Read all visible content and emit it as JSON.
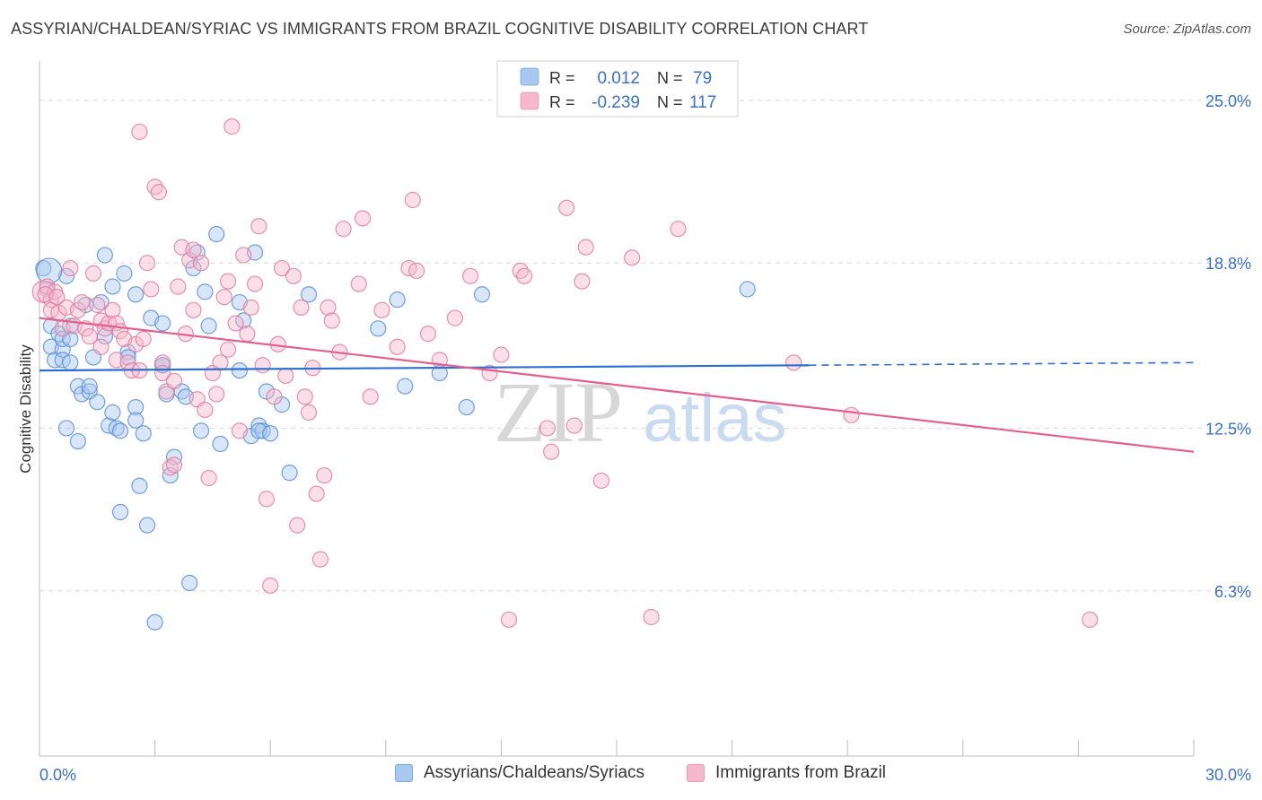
{
  "title": "ASSYRIAN/CHALDEAN/SYRIAC VS IMMIGRANTS FROM BRAZIL COGNITIVE DISABILITY CORRELATION CHART",
  "source": "Source: ZipAtlas.com",
  "watermark": {
    "zip": "ZIP",
    "atlas": "atlas"
  },
  "colors": {
    "blue_fill": "#a9c8f0",
    "blue_stroke": "#5b8fd6",
    "blue_line": "#2d6fd0",
    "pink_fill": "#f5b8cc",
    "pink_stroke": "#e27ea0",
    "pink_line": "#e0608e",
    "axis_label": "#3a6fc4",
    "grid": "#d8d8d8"
  },
  "legend": {
    "rows": [
      {
        "r_label": "R =",
        "r_value": "0.012",
        "n_label": "N =",
        "n_value": "79"
      },
      {
        "r_label": "R =",
        "r_value": "-0.239",
        "n_label": "N =",
        "n_value": "117"
      }
    ]
  },
  "bottom_legend": [
    "Assyrians/Chaldeans/Syriacs",
    "Immigrants from Brazil"
  ],
  "chart_data": {
    "type": "scatter",
    "ylabel": "Cognitive Disability",
    "xlim": [
      0,
      30
    ],
    "ylim": [
      0,
      26.5
    ],
    "x_tick_labels": {
      "left": "0.0%",
      "right": "30.0%"
    },
    "y_ticks": [
      {
        "value": 25.0,
        "label": "25.0%"
      },
      {
        "value": 18.8,
        "label": "18.8%"
      },
      {
        "value": 12.5,
        "label": "12.5%"
      },
      {
        "value": 6.3,
        "label": "6.3%"
      }
    ],
    "series": [
      {
        "name": "Assyrians/Chaldeans/Syriacs",
        "trend": {
          "x0": 0,
          "y0": 14.7,
          "x1": 20,
          "y1": 14.9,
          "dash_x1": 30,
          "dash_y1": 15.0
        },
        "points": [
          [
            0.1,
            18.6
          ],
          [
            0.2,
            17.8
          ],
          [
            0.3,
            16.4
          ],
          [
            0.3,
            15.6
          ],
          [
            0.4,
            15.1
          ],
          [
            0.5,
            16.1
          ],
          [
            0.6,
            15.5
          ],
          [
            0.6,
            15.1
          ],
          [
            0.6,
            15.9
          ],
          [
            0.7,
            18.3
          ],
          [
            0.8,
            16.4
          ],
          [
            0.8,
            15.9
          ],
          [
            0.7,
            12.5
          ],
          [
            0.8,
            15.0
          ],
          [
            1.0,
            14.1
          ],
          [
            1.0,
            12.0
          ],
          [
            1.1,
            13.8
          ],
          [
            1.2,
            17.2
          ],
          [
            1.3,
            13.9
          ],
          [
            1.3,
            14.1
          ],
          [
            1.4,
            15.2
          ],
          [
            1.5,
            13.5
          ],
          [
            1.6,
            17.3
          ],
          [
            1.7,
            19.1
          ],
          [
            1.7,
            16.0
          ],
          [
            1.8,
            12.6
          ],
          [
            1.9,
            17.9
          ],
          [
            1.9,
            13.1
          ],
          [
            2.0,
            12.5
          ],
          [
            2.1,
            12.4
          ],
          [
            2.1,
            9.3
          ],
          [
            2.2,
            18.4
          ],
          [
            2.3,
            15.4
          ],
          [
            2.3,
            15.2
          ],
          [
            2.5,
            17.6
          ],
          [
            2.5,
            13.3
          ],
          [
            2.5,
            12.8
          ],
          [
            2.6,
            10.3
          ],
          [
            2.7,
            12.3
          ],
          [
            2.8,
            8.8
          ],
          [
            2.9,
            16.7
          ],
          [
            3.0,
            5.1
          ],
          [
            3.2,
            16.5
          ],
          [
            3.2,
            14.9
          ],
          [
            3.2,
            14.9
          ],
          [
            3.3,
            13.8
          ],
          [
            3.4,
            10.7
          ],
          [
            3.5,
            11.4
          ],
          [
            3.7,
            13.9
          ],
          [
            3.8,
            13.7
          ],
          [
            3.9,
            6.6
          ],
          [
            4.0,
            18.6
          ],
          [
            4.1,
            19.2
          ],
          [
            4.2,
            12.4
          ],
          [
            4.3,
            17.7
          ],
          [
            4.4,
            16.4
          ],
          [
            4.6,
            19.9
          ],
          [
            4.7,
            11.9
          ],
          [
            5.2,
            14.7
          ],
          [
            5.2,
            17.3
          ],
          [
            5.3,
            16.6
          ],
          [
            5.5,
            12.2
          ],
          [
            5.6,
            19.2
          ],
          [
            5.7,
            12.6
          ],
          [
            5.8,
            12.4
          ],
          [
            5.7,
            12.4
          ],
          [
            5.9,
            13.9
          ],
          [
            6.0,
            12.3
          ],
          [
            6.3,
            13.4
          ],
          [
            6.5,
            10.8
          ],
          [
            7.0,
            17.6
          ],
          [
            8.8,
            16.3
          ],
          [
            9.3,
            17.4
          ],
          [
            9.5,
            14.1
          ],
          [
            10.4,
            14.6
          ],
          [
            11.1,
            13.3
          ],
          [
            11.5,
            17.6
          ],
          [
            18.4,
            17.8
          ],
          [
            0.25,
            18.5
          ]
        ]
      },
      {
        "name": "Immigrants from Brazil",
        "trend": {
          "x0": 0,
          "y0": 16.7,
          "x1": 30,
          "y1": 11.6
        },
        "points": [
          [
            0.1,
            17.7
          ],
          [
            0.2,
            17.9
          ],
          [
            0.3,
            17.4
          ],
          [
            0.3,
            17.0
          ],
          [
            0.4,
            17.7
          ],
          [
            0.5,
            16.9
          ],
          [
            0.6,
            16.3
          ],
          [
            0.7,
            17.1
          ],
          [
            0.8,
            18.6
          ],
          [
            0.9,
            16.4
          ],
          [
            1.0,
            17.0
          ],
          [
            1.1,
            17.3
          ],
          [
            1.2,
            16.3
          ],
          [
            1.3,
            16.0
          ],
          [
            1.4,
            18.4
          ],
          [
            1.5,
            17.2
          ],
          [
            1.6,
            16.6
          ],
          [
            1.7,
            16.3
          ],
          [
            1.8,
            16.5
          ],
          [
            1.9,
            17.0
          ],
          [
            2.0,
            16.5
          ],
          [
            2.0,
            15.1
          ],
          [
            2.1,
            16.2
          ],
          [
            2.2,
            15.9
          ],
          [
            2.3,
            15.0
          ],
          [
            2.4,
            14.7
          ],
          [
            2.5,
            15.7
          ],
          [
            2.6,
            14.7
          ],
          [
            2.6,
            23.8
          ],
          [
            2.7,
            15.9
          ],
          [
            2.8,
            18.8
          ],
          [
            2.9,
            17.8
          ],
          [
            3.0,
            21.7
          ],
          [
            3.1,
            21.5
          ],
          [
            3.2,
            15.0
          ],
          [
            3.2,
            14.6
          ],
          [
            3.3,
            13.9
          ],
          [
            3.4,
            11.0
          ],
          [
            3.5,
            11.1
          ],
          [
            3.5,
            14.3
          ],
          [
            3.6,
            17.9
          ],
          [
            3.7,
            19.4
          ],
          [
            3.8,
            16.1
          ],
          [
            3.9,
            18.9
          ],
          [
            4.0,
            17.0
          ],
          [
            4.0,
            19.3
          ],
          [
            4.1,
            13.6
          ],
          [
            4.2,
            18.8
          ],
          [
            4.3,
            13.2
          ],
          [
            4.4,
            10.6
          ],
          [
            4.5,
            14.6
          ],
          [
            4.6,
            13.8
          ],
          [
            4.7,
            15.0
          ],
          [
            4.8,
            17.5
          ],
          [
            4.9,
            18.1
          ],
          [
            4.9,
            15.5
          ],
          [
            5.0,
            24.0
          ],
          [
            5.1,
            16.5
          ],
          [
            5.2,
            12.4
          ],
          [
            5.3,
            19.1
          ],
          [
            5.4,
            16.1
          ],
          [
            5.5,
            17.1
          ],
          [
            5.6,
            18.0
          ],
          [
            5.7,
            20.2
          ],
          [
            5.8,
            14.9
          ],
          [
            5.9,
            9.8
          ],
          [
            6.0,
            6.5
          ],
          [
            6.1,
            13.7
          ],
          [
            6.2,
            15.7
          ],
          [
            6.3,
            18.6
          ],
          [
            6.4,
            14.5
          ],
          [
            6.6,
            18.3
          ],
          [
            6.7,
            8.8
          ],
          [
            6.8,
            17.1
          ],
          [
            6.9,
            13.7
          ],
          [
            7.0,
            13.1
          ],
          [
            7.1,
            14.8
          ],
          [
            7.2,
            10.0
          ],
          [
            7.3,
            7.5
          ],
          [
            7.4,
            10.7
          ],
          [
            7.5,
            17.1
          ],
          [
            7.6,
            16.6
          ],
          [
            7.8,
            15.4
          ],
          [
            7.9,
            20.1
          ],
          [
            8.3,
            18.0
          ],
          [
            8.4,
            20.5
          ],
          [
            8.6,
            13.7
          ],
          [
            8.9,
            17.0
          ],
          [
            9.3,
            15.6
          ],
          [
            9.6,
            18.6
          ],
          [
            9.7,
            21.2
          ],
          [
            9.8,
            18.5
          ],
          [
            10.1,
            16.1
          ],
          [
            10.4,
            15.1
          ],
          [
            10.8,
            16.7
          ],
          [
            11.2,
            18.3
          ],
          [
            11.7,
            14.6
          ],
          [
            12.0,
            15.3
          ],
          [
            12.2,
            5.2
          ],
          [
            12.5,
            18.5
          ],
          [
            12.6,
            18.3
          ],
          [
            13.2,
            12.5
          ],
          [
            13.3,
            11.6
          ],
          [
            13.7,
            20.9
          ],
          [
            13.9,
            12.6
          ],
          [
            14.1,
            18.1
          ],
          [
            14.2,
            19.4
          ],
          [
            14.6,
            10.5
          ],
          [
            15.4,
            19.0
          ],
          [
            15.9,
            5.3
          ],
          [
            16.6,
            20.1
          ],
          [
            19.6,
            15.0
          ],
          [
            21.1,
            13.0
          ],
          [
            27.3,
            5.2
          ],
          [
            0.15,
            17.6
          ],
          [
            1.6,
            15.6
          ],
          [
            0.45,
            17.5
          ]
        ]
      }
    ]
  }
}
